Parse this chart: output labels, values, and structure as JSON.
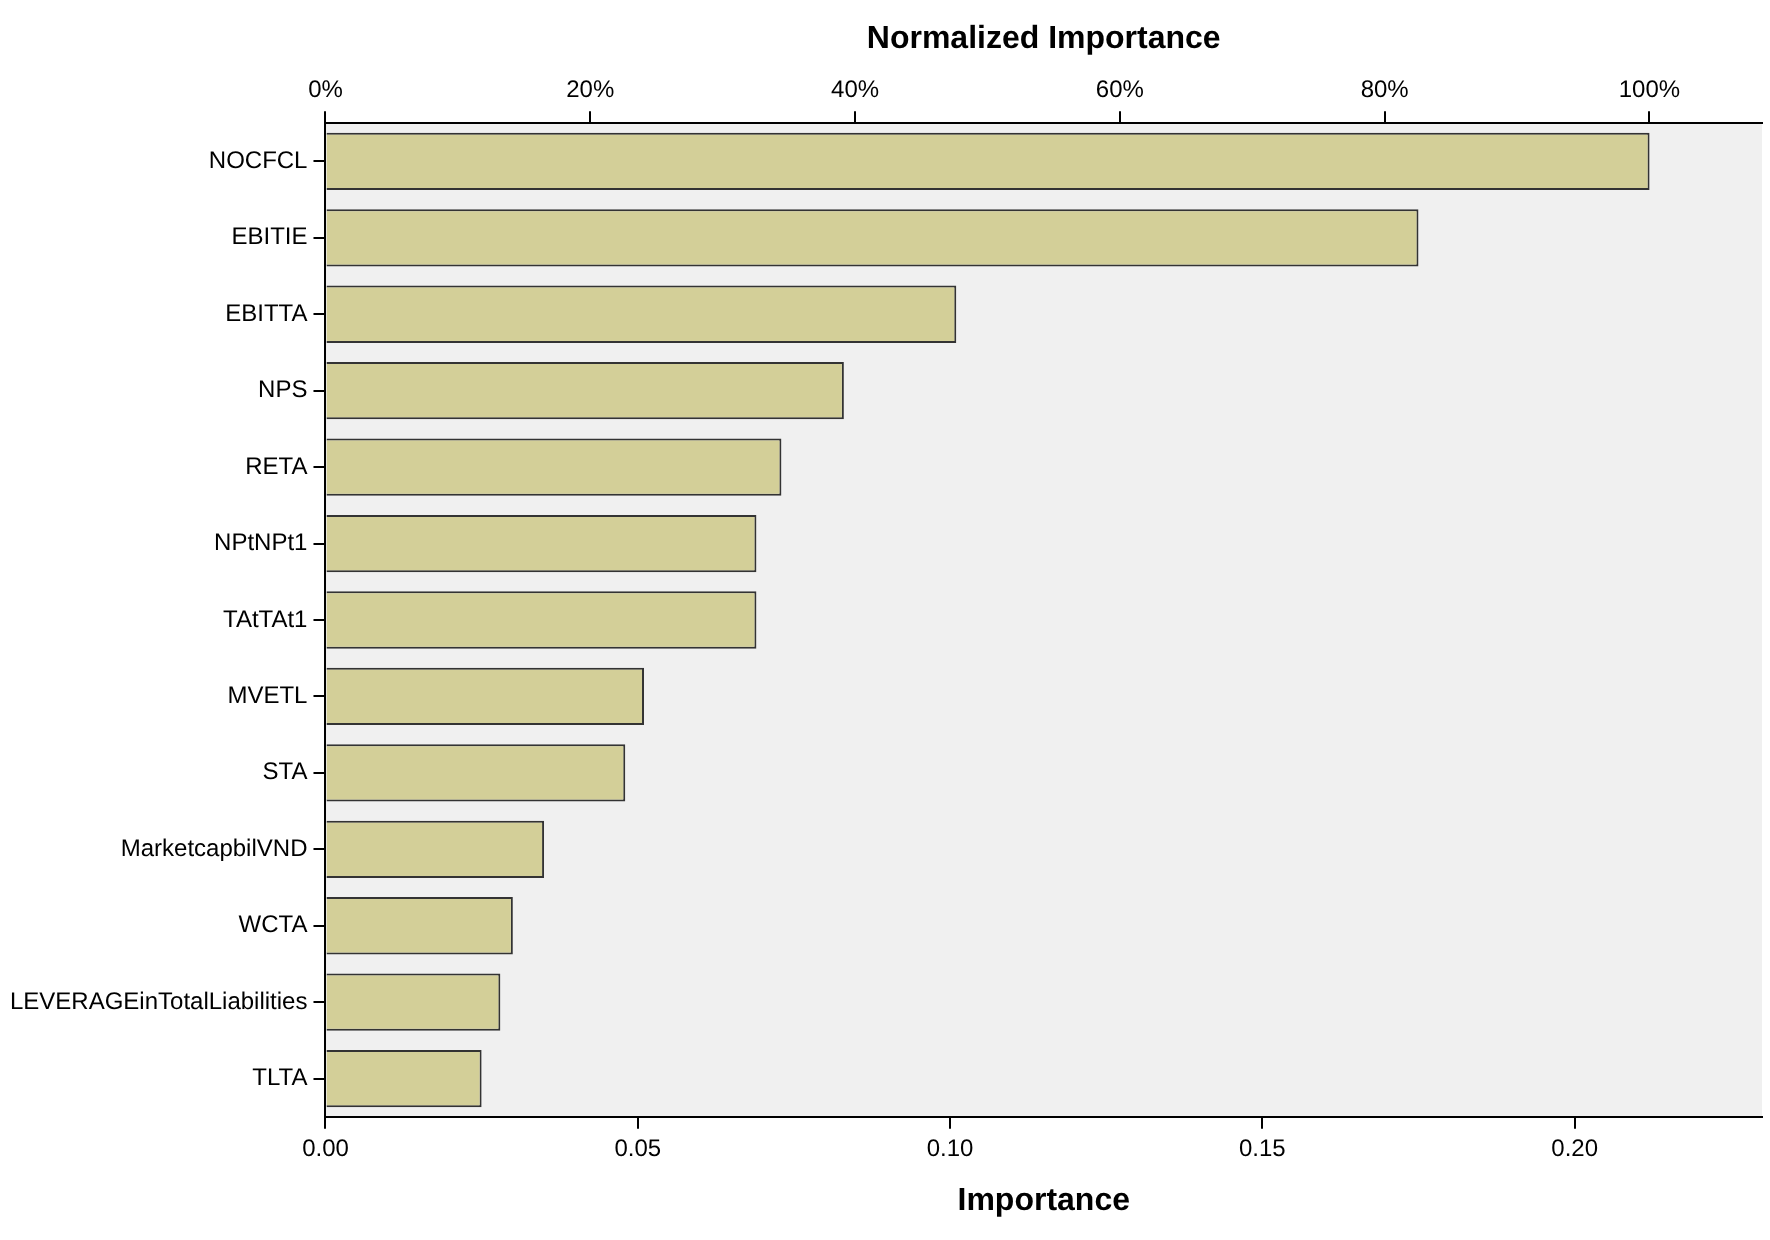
{
  "chart_data": {
    "type": "bar",
    "orientation": "horizontal",
    "xlabel": "Importance",
    "x2label": "Normalized Importance",
    "categories": [
      "NOCFCL",
      "EBITIE",
      "EBITTA",
      "NPS",
      "RETA",
      "NPtNPt1",
      "TAtTAt1",
      "MVETL",
      "STA",
      "MarketcapbilVND",
      "WCTA",
      "LEVERAGEinTotalLiabilities",
      "TLTA"
    ],
    "values": [
      0.212,
      0.175,
      0.101,
      0.083,
      0.073,
      0.069,
      0.069,
      0.051,
      0.048,
      0.035,
      0.03,
      0.028,
      0.025
    ],
    "color": "#d3cf98",
    "xlim": [
      0,
      0.23
    ],
    "xticks": [
      {
        "value": 0,
        "label": "0.00"
      },
      {
        "value": 0.05,
        "label": "0.05"
      },
      {
        "value": 0.1,
        "label": "0.10"
      },
      {
        "value": 0.15,
        "label": "0.15"
      },
      {
        "value": 0.2,
        "label": "0.20"
      }
    ],
    "x2lim": [
      0,
      108.5
    ],
    "x2ticks": [
      {
        "value": 0,
        "label": "0%"
      },
      {
        "value": 20,
        "label": "20%"
      },
      {
        "value": 40,
        "label": "40%"
      },
      {
        "value": 60,
        "label": "60%"
      },
      {
        "value": 80,
        "label": "80%"
      },
      {
        "value": 100,
        "label": "100%"
      }
    ],
    "grid": false,
    "legend": false
  }
}
